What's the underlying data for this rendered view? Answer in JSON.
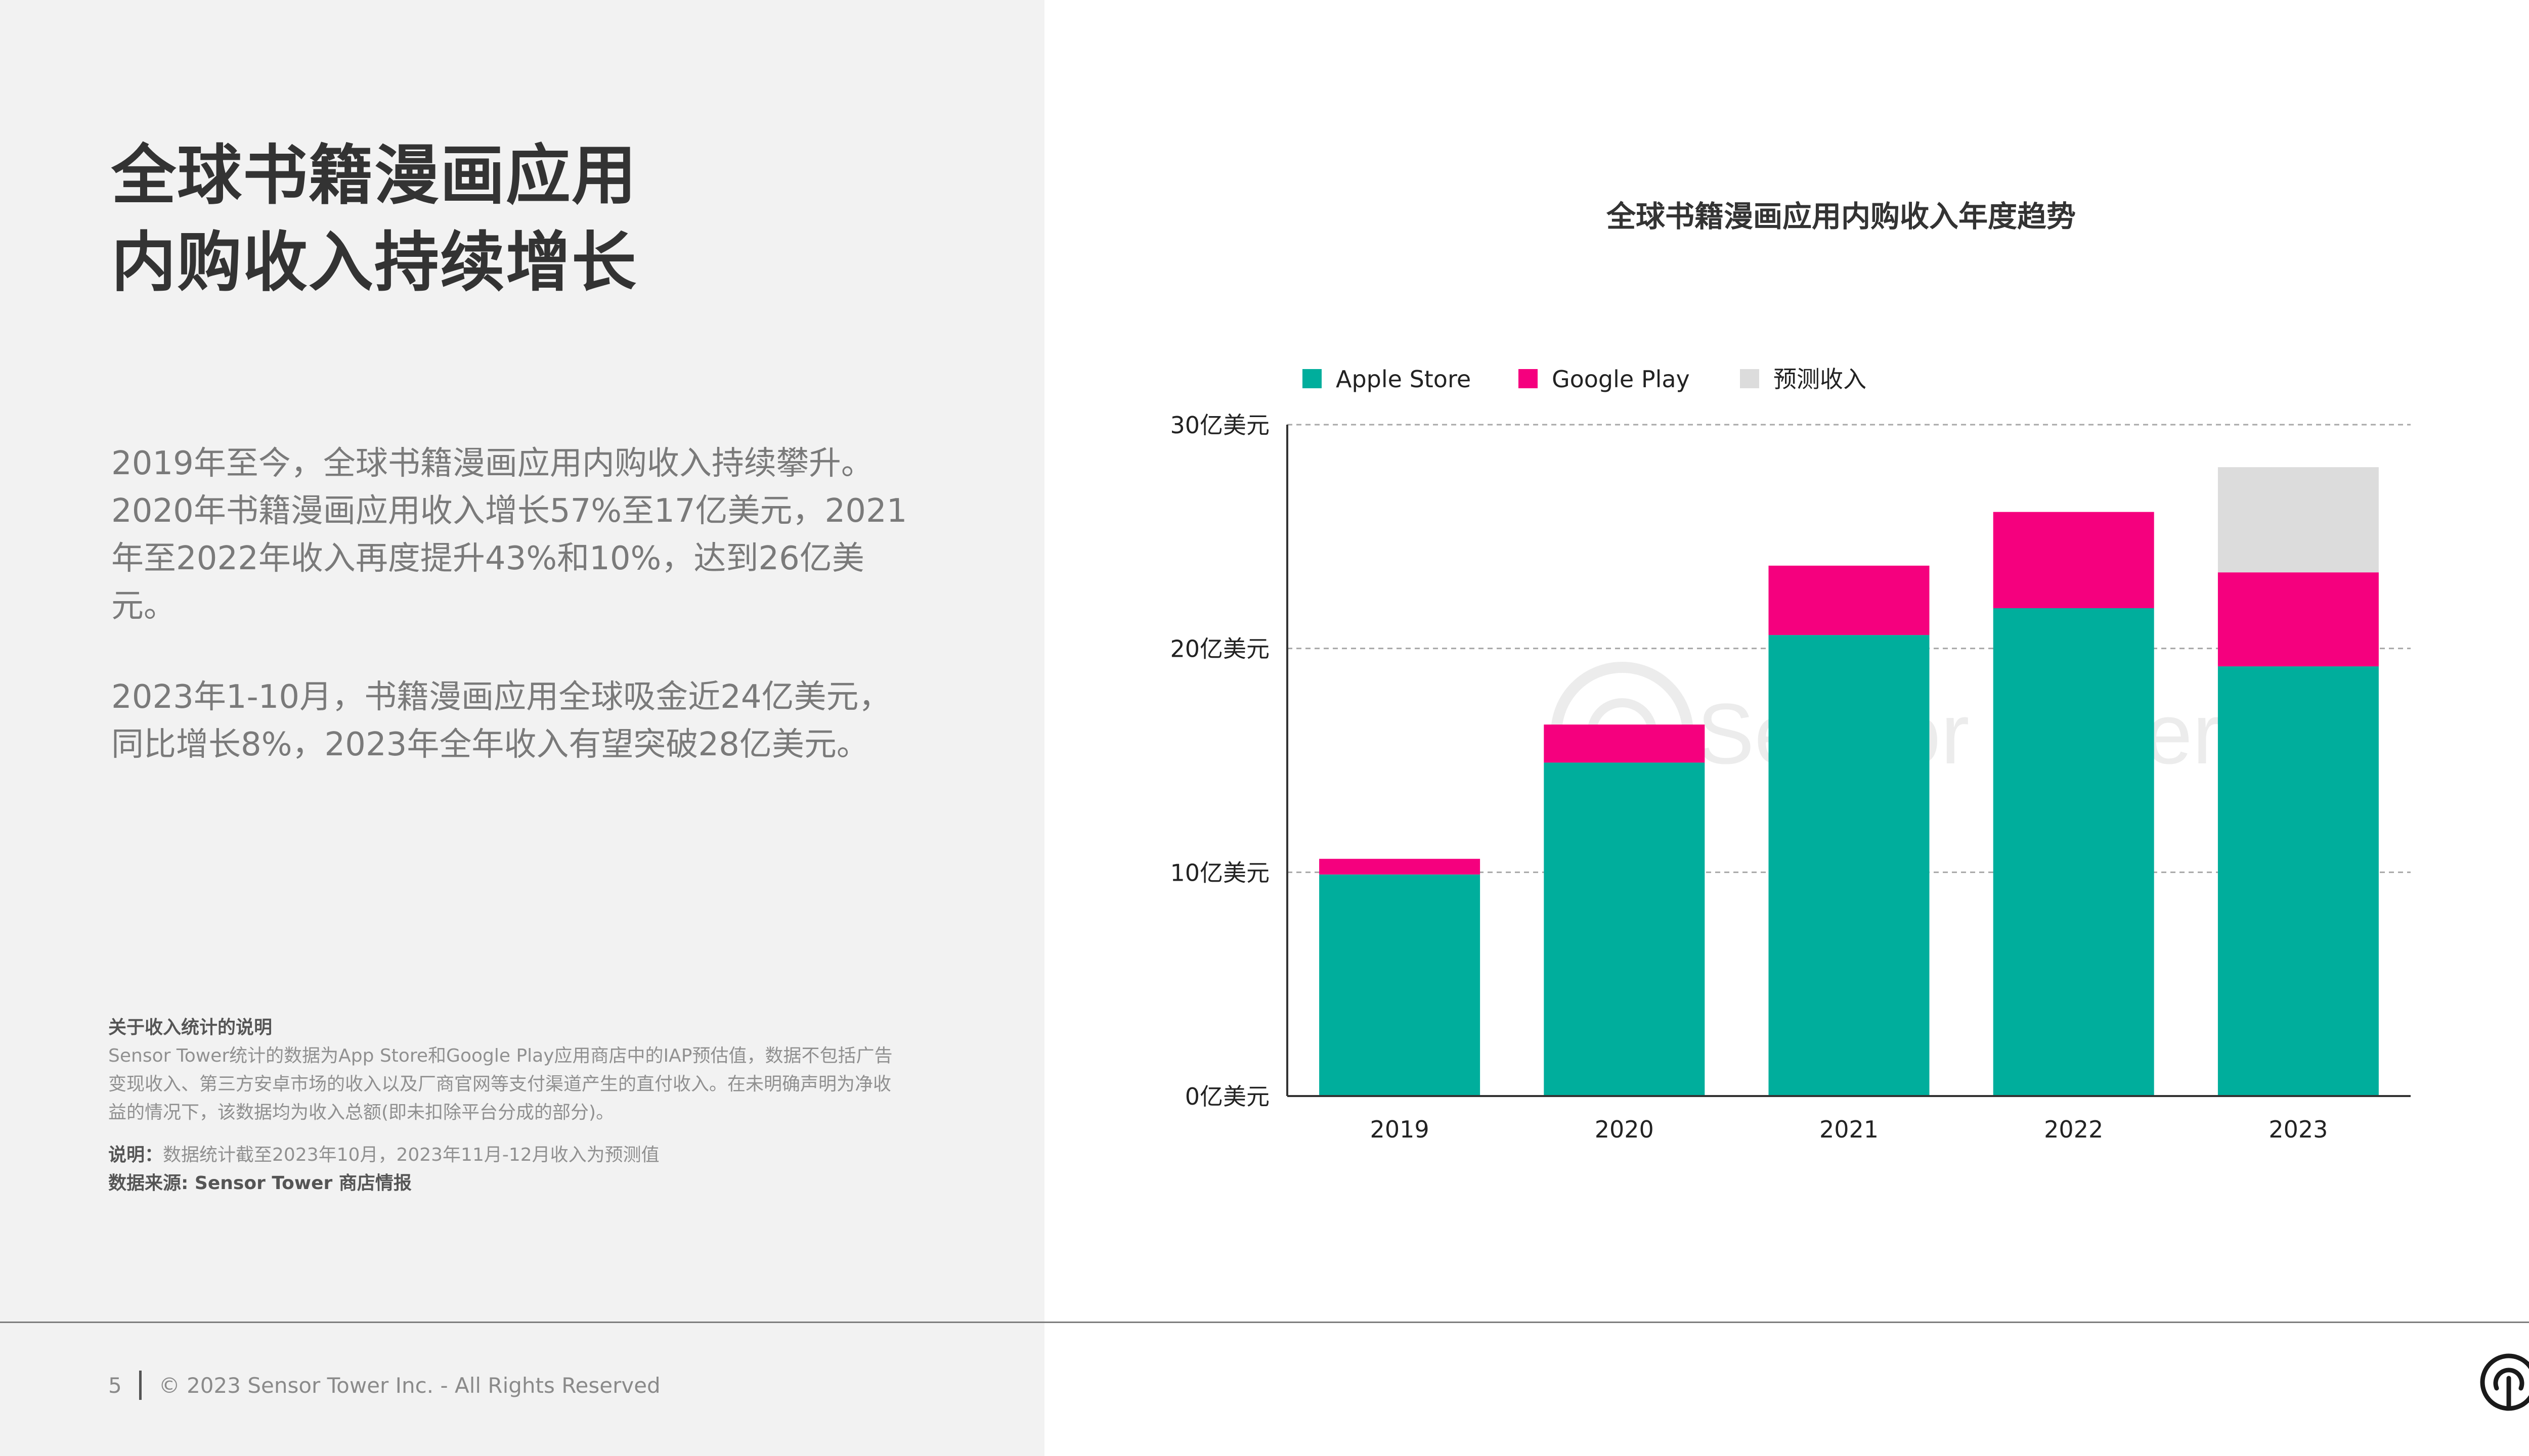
{
  "headline": {
    "line1": "全球书籍漫画应用",
    "line2": "内购收入持续增长"
  },
  "body": {
    "paragraph1": "2019年至今，全球书籍漫画应用内购收入持续攀升。2020年书籍漫画应用收入增长57%至17亿美元，2021年至2022年收入再度提升43%和10%，达到26亿美元。",
    "paragraph2": "2023年1-10月，书籍漫画应用全球吸金近24亿美元，同比增长8%，2023年全年收入有望突破28亿美元。"
  },
  "notes": {
    "title": "关于收入统计的说明",
    "text": "Sensor Tower统计的数据为App Store和Google Play应用商店中的IAP预估值，数据不包括广告变现收入、第三方安卓市场的收入以及厂商官网等支付渠道产生的直付收入。在未明确声明为净收益的情况下，该数据均为收入总额(即未扣除平台分成的部分)。",
    "remark_label": "说明：",
    "remark_text": "数据统计截至2023年10月，2023年11月-12月收入为预测值",
    "source": "数据来源: Sensor Tower 商店情报"
  },
  "footer": {
    "page_number": "5",
    "copyright": "© 2023 Sensor Tower Inc. - All Rights Reserved"
  },
  "watermark": "Sensor Tower",
  "colors": {
    "apple": "#00ae9c",
    "google": "#f5007e",
    "forecast": "#dcdcdc",
    "left_panel": "#f2f2f2"
  },
  "icons": {
    "footer_logo": "sensor-tower-logo-icon"
  },
  "chart_data": {
    "type": "bar",
    "stacked": true,
    "title": "全球书籍漫画应用内购收入年度趋势",
    "categories": [
      "2019",
      "2020",
      "2021",
      "2022",
      "2023"
    ],
    "series": [
      {
        "name": "Apple Store",
        "color": "#00ae9c",
        "values": [
          9.9,
          14.9,
          20.6,
          21.8,
          19.2
        ]
      },
      {
        "name": "Google Play",
        "color": "#f5007e",
        "values": [
          0.7,
          1.7,
          3.1,
          4.3,
          4.2
        ]
      },
      {
        "name": "预测收入",
        "color": "#dcdcdc",
        "values": [
          0,
          0,
          0,
          0,
          4.7
        ]
      }
    ],
    "yticks": [
      {
        "value": 0,
        "label": "0亿美元"
      },
      {
        "value": 10,
        "label": "10亿美元"
      },
      {
        "value": 20,
        "label": "20亿美元"
      },
      {
        "value": 30,
        "label": "30亿美元"
      }
    ],
    "ylim": [
      0,
      30
    ],
    "grid": true,
    "legend_position": "top-left"
  }
}
